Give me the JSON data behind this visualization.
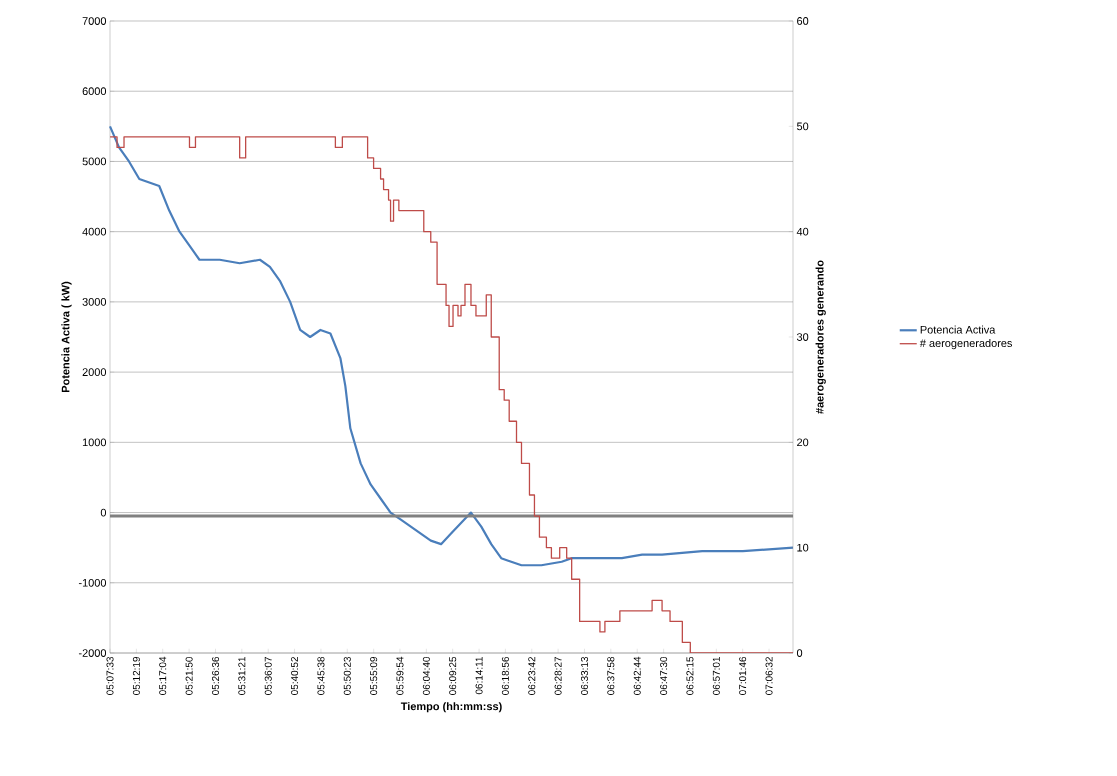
{
  "chart_data": {
    "type": "line",
    "xlabel": "Tiempo (hh:mm:ss)",
    "ylabel": "Potencia Activa ( kW)",
    "y2label": "#aerogeneradores generando",
    "xlim": [
      5.12583,
      7.181
    ],
    "xticks": [
      {
        "value": 5.12583,
        "label": "05:07:33"
      },
      {
        "value": 5.20528,
        "label": "05:12:19"
      },
      {
        "value": 5.28444,
        "label": "05:17:04"
      },
      {
        "value": 5.36389,
        "label": "05:21:50"
      },
      {
        "value": 5.44333,
        "label": "05:26:36"
      },
      {
        "value": 5.5225,
        "label": "05:31:21"
      },
      {
        "value": 5.60194,
        "label": "05:36:07"
      },
      {
        "value": 5.68111,
        "label": "05:40:52"
      },
      {
        "value": 5.76056,
        "label": "05:45:38"
      },
      {
        "value": 5.83972,
        "label": "05:50:23"
      },
      {
        "value": 5.91917,
        "label": "05:55:09"
      },
      {
        "value": 5.99833,
        "label": "05:59:54"
      },
      {
        "value": 6.07778,
        "label": "06:04:40"
      },
      {
        "value": 6.15694,
        "label": "06:09:25"
      },
      {
        "value": 6.23639,
        "label": "06:14:11"
      },
      {
        "value": 6.31556,
        "label": "06:18:56"
      },
      {
        "value": 6.395,
        "label": "06:23:42"
      },
      {
        "value": 6.47417,
        "label": "06:28:27"
      },
      {
        "value": 6.55361,
        "label": "06:33:13"
      },
      {
        "value": 6.63278,
        "label": "06:37:58"
      },
      {
        "value": 6.71222,
        "label": "06:42:44"
      },
      {
        "value": 6.79167,
        "label": "06:47:30"
      },
      {
        "value": 6.87083,
        "label": "06:52:15"
      },
      {
        "value": 6.95028,
        "label": "06:57:01"
      },
      {
        "value": 7.02944,
        "label": "07:01:46"
      },
      {
        "value": 7.10889,
        "label": "07:06:32"
      }
    ],
    "ylim": [
      -2000,
      7000
    ],
    "yticks": [
      -2000,
      -1000,
      0,
      1000,
      2000,
      3000,
      4000,
      5000,
      6000,
      7000
    ],
    "y2lim": [
      0,
      60
    ],
    "y2ticks": [
      0,
      10,
      20,
      30,
      40,
      50,
      60
    ],
    "grid": "y",
    "legend": "right",
    "ref_lines": [
      {
        "axis": "y",
        "value": -50,
        "color": "#808080"
      }
    ],
    "series": [
      {
        "name": "Potencia Activa",
        "color": "#4a7ebb",
        "x": [
          5.12583,
          5.153,
          5.183,
          5.214,
          5.274,
          5.304,
          5.335,
          5.365,
          5.395,
          5.456,
          5.516,
          5.577,
          5.607,
          5.637,
          5.668,
          5.698,
          5.728,
          5.759,
          5.789,
          5.819,
          5.834,
          5.849,
          5.88,
          5.91,
          5.94,
          5.97,
          6.001,
          6.061,
          6.091,
          6.122,
          6.152,
          6.182,
          6.212,
          6.243,
          6.273,
          6.303,
          6.333,
          6.364,
          6.424,
          6.485,
          6.515,
          6.545,
          6.606,
          6.666,
          6.727,
          6.787,
          6.908,
          7.03,
          7.181
        ],
        "values": [
          5500,
          5200,
          5000,
          4750,
          4650,
          4300,
          4000,
          3800,
          3600,
          3600,
          3550,
          3600,
          3500,
          3300,
          3000,
          2600,
          2500,
          2600,
          2550,
          2200,
          1800,
          1200,
          700,
          400,
          200,
          0,
          -100,
          -300,
          -400,
          -450,
          -300,
          -150,
          0,
          -200,
          -450,
          -650,
          -700,
          -750,
          -750,
          -700,
          -650,
          -650,
          -650,
          -650,
          -600,
          -600,
          -550,
          -550,
          -500
        ]
      },
      {
        "name": "# aerogeneradores",
        "type": "step",
        "axis": "y2",
        "color": "#be4b48",
        "x": [
          5.126,
          5.147,
          5.168,
          5.365,
          5.383,
          5.516,
          5.534,
          5.804,
          5.825,
          5.901,
          5.919,
          5.94,
          5.949,
          5.964,
          5.97,
          5.979,
          5.995,
          6.07,
          6.091,
          6.11,
          6.137,
          6.146,
          6.158,
          6.173,
          6.182,
          6.194,
          6.212,
          6.227,
          6.258,
          6.273,
          6.297,
          6.312,
          6.327,
          6.349,
          6.364,
          6.388,
          6.403,
          6.418,
          6.439,
          6.454,
          6.479,
          6.5,
          6.515,
          6.539,
          6.6,
          6.615,
          6.66,
          6.757,
          6.787,
          6.811,
          6.848,
          6.872,
          7.181
        ],
        "values": [
          49,
          48,
          49,
          48,
          49,
          47,
          49,
          48,
          49,
          47,
          46,
          45,
          44,
          43,
          41,
          43,
          42,
          40,
          39,
          35,
          33,
          31,
          33,
          32,
          33,
          35,
          33,
          32,
          34,
          30,
          25,
          24,
          22,
          20,
          18,
          15,
          13,
          11,
          10,
          9,
          10,
          9,
          7,
          3,
          2,
          3,
          4,
          5,
          4,
          3,
          1,
          0,
          0
        ]
      }
    ]
  }
}
